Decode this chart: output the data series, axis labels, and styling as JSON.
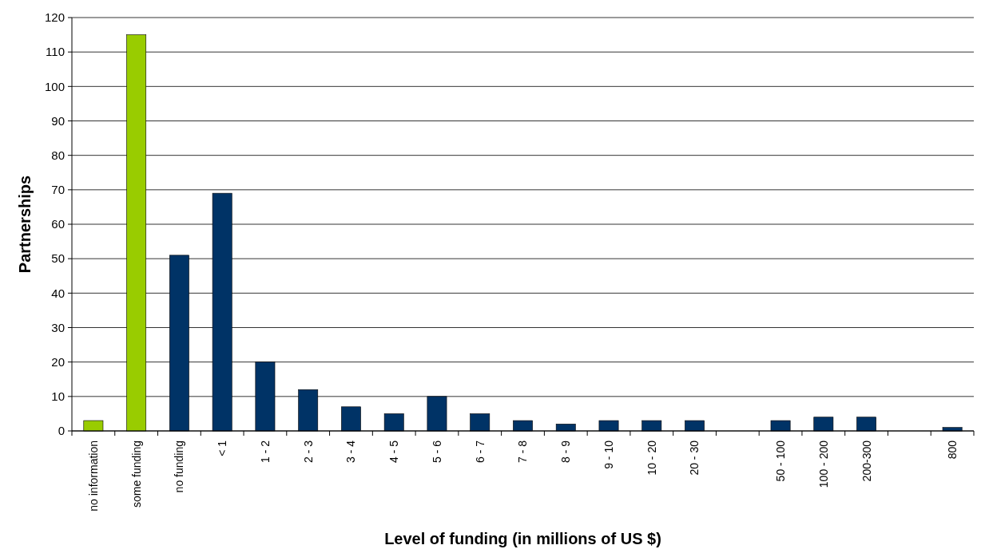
{
  "chart_data": {
    "type": "bar",
    "xlabel": "Level of funding (in millions of US $)",
    "ylabel": "Partnerships",
    "categories": [
      "no information",
      "some funding",
      "no funding",
      "< 1",
      "1 - 2",
      "2 - 3",
      "3 - 4",
      "4 - 5",
      "5 - 6",
      "6 - 7",
      "7 - 8",
      "8 - 9",
      "9 - 10",
      "10 - 20",
      "20 - 30",
      null,
      "50 - 100",
      "100 - 200",
      "200-300",
      null,
      "800"
    ],
    "values": [
      3,
      115,
      51,
      69,
      20,
      12,
      7,
      5,
      10,
      5,
      3,
      2,
      3,
      3,
      3,
      null,
      3,
      4,
      4,
      null,
      1
    ],
    "colors": [
      "#99cc00",
      "#99cc00",
      "#003366",
      "#003366",
      "#003366",
      "#003366",
      "#003366",
      "#003366",
      "#003366",
      "#003366",
      "#003366",
      "#003366",
      "#003366",
      "#003366",
      "#003366",
      null,
      "#003366",
      "#003366",
      "#003366",
      null,
      "#003366"
    ],
    "ylim": [
      0,
      120
    ],
    "yticks": [
      0,
      10,
      20,
      30,
      40,
      50,
      60,
      70,
      80,
      90,
      100,
      110,
      120
    ],
    "grid": "y"
  }
}
